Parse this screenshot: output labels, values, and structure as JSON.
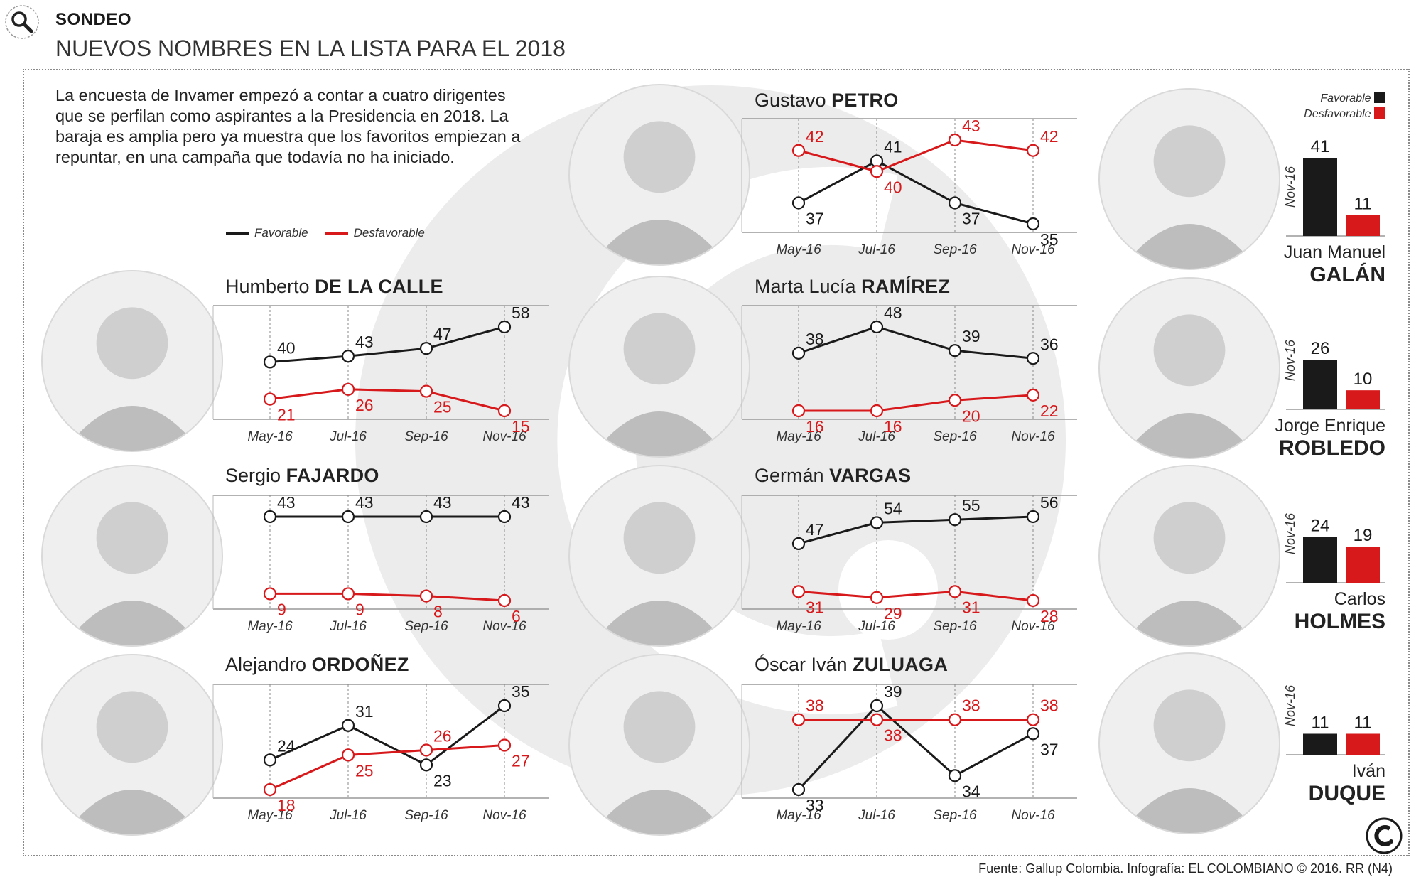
{
  "header": {
    "tag": "SONDEO",
    "title": "NUEVOS NOMBRES EN LA LISTA PARA EL 2018"
  },
  "intro": "La encuesta de Invamer empezó a contar a cuatro dirigentes que se perfilan como aspirantes a la Presidencia en 2018. La baraja es amplia pero ya muestra que los favoritos empiezan a repuntar, en una campaña que todavía no ha iniciado.",
  "legend": {
    "favorable": "Favorable",
    "desfavorable": "Desfavorable"
  },
  "bar_legend": {
    "favorable": "Favorable",
    "desfavorable": "Desfavorable"
  },
  "colors": {
    "favorable": "#1a1a1a",
    "desfavorable": "#d7191c",
    "watermark": "#ececec",
    "frame": "#8a8a8a"
  },
  "icons": {
    "header": "magnifier-icon",
    "brand": "el-colombiano-logo"
  },
  "source": "Fuente: Gallup Colombia. Infografía: EL COLOMBIANO © 2016. RR (N4)",
  "chart_data": [
    {
      "type": "line",
      "first_name": "Humberto",
      "last_name": "DE LA CALLE",
      "x": [
        "May-16",
        "Jul-16",
        "Sep-16",
        "Nov-16"
      ],
      "series": [
        {
          "name": "Favorable",
          "values": [
            40,
            43,
            47,
            58
          ]
        },
        {
          "name": "Desfavorable",
          "values": [
            21,
            26,
            25,
            15
          ]
        }
      ]
    },
    {
      "type": "line",
      "first_name": "Sergio",
      "last_name": "FAJARDO",
      "x": [
        "May-16",
        "Jul-16",
        "Sep-16",
        "Nov-16"
      ],
      "series": [
        {
          "name": "Favorable",
          "values": [
            43,
            43,
            43,
            43
          ]
        },
        {
          "name": "Desfavorable",
          "values": [
            9,
            9,
            8,
            6
          ]
        }
      ]
    },
    {
      "type": "line",
      "first_name": "Alejandro",
      "last_name": "ORDOÑEZ",
      "x": [
        "May-16",
        "Jul-16",
        "Sep-16",
        "Nov-16"
      ],
      "series": [
        {
          "name": "Favorable",
          "values": [
            24,
            31,
            23,
            35
          ]
        },
        {
          "name": "Desfavorable",
          "values": [
            18,
            25,
            26,
            27
          ]
        }
      ]
    },
    {
      "type": "line",
      "first_name": "Gustavo",
      "last_name": "PETRO",
      "x": [
        "May-16",
        "Jul-16",
        "Sep-16",
        "Nov-16"
      ],
      "series": [
        {
          "name": "Favorable",
          "values": [
            37,
            41,
            37,
            35
          ]
        },
        {
          "name": "Desfavorable",
          "values": [
            42,
            40,
            43,
            42
          ]
        }
      ]
    },
    {
      "type": "line",
      "first_name": "Marta Lucía",
      "last_name": "RAMÍREZ",
      "x": [
        "May-16",
        "Jul-16",
        "Sep-16",
        "Nov-16"
      ],
      "series": [
        {
          "name": "Favorable",
          "values": [
            38,
            48,
            39,
            36
          ]
        },
        {
          "name": "Desfavorable",
          "values": [
            16,
            16,
            20,
            22
          ]
        }
      ]
    },
    {
      "type": "line",
      "first_name": "Germán",
      "last_name": "VARGAS",
      "x": [
        "May-16",
        "Jul-16",
        "Sep-16",
        "Nov-16"
      ],
      "series": [
        {
          "name": "Favorable",
          "values": [
            47,
            54,
            55,
            56
          ]
        },
        {
          "name": "Desfavorable",
          "values": [
            31,
            29,
            31,
            28
          ]
        }
      ]
    },
    {
      "type": "line",
      "first_name": "Óscar Iván",
      "last_name": "ZULUAGA",
      "x": [
        "May-16",
        "Jul-16",
        "Sep-16",
        "Nov-16"
      ],
      "series": [
        {
          "name": "Favorable",
          "values": [
            33,
            39,
            34,
            37
          ]
        },
        {
          "name": "Desfavorable",
          "values": [
            38,
            38,
            38,
            38
          ]
        }
      ]
    },
    {
      "type": "bar",
      "first_name": "Juan Manuel",
      "last_name": "GALÁN",
      "categories": [
        "Nov-16"
      ],
      "series": [
        {
          "name": "Favorable",
          "values": [
            41
          ]
        },
        {
          "name": "Desfavorable",
          "values": [
            11
          ]
        }
      ]
    },
    {
      "type": "bar",
      "first_name": "Jorge Enrique",
      "last_name": "ROBLEDO",
      "categories": [
        "Nov-16"
      ],
      "series": [
        {
          "name": "Favorable",
          "values": [
            26
          ]
        },
        {
          "name": "Desfavorable",
          "values": [
            10
          ]
        }
      ]
    },
    {
      "type": "bar",
      "first_name": "Carlos",
      "last_name": "HOLMES",
      "categories": [
        "Nov-16"
      ],
      "series": [
        {
          "name": "Favorable",
          "values": [
            24
          ]
        },
        {
          "name": "Desfavorable",
          "values": [
            19
          ]
        }
      ]
    },
    {
      "type": "bar",
      "first_name": "Iván",
      "last_name": "DUQUE",
      "categories": [
        "Nov-16"
      ],
      "series": [
        {
          "name": "Favorable",
          "values": [
            11
          ]
        },
        {
          "name": "Desfavorable",
          "values": [
            11
          ]
        }
      ]
    }
  ]
}
